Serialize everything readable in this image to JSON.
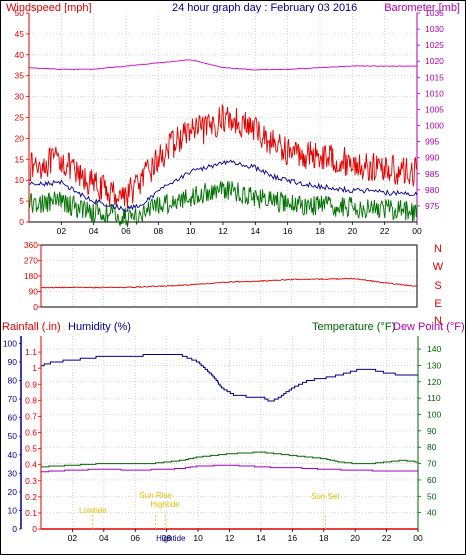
{
  "chart_data": [
    {
      "type": "line",
      "title": "24 hour graph day : February 03 2016",
      "left_axis_label": "Windspeed [mph]",
      "right_axis_label": "Barometer [mb]",
      "x_ticks": [
        "02",
        "04",
        "06",
        "08",
        "10",
        "12",
        "14",
        "16",
        "18",
        "20",
        "22",
        "00"
      ],
      "left_ylim": [
        0,
        50
      ],
      "left_ticks": [
        0,
        5,
        10,
        15,
        20,
        25,
        30,
        35,
        40,
        45,
        50
      ],
      "right_ylim": [
        970,
        1035
      ],
      "right_ticks": [
        975,
        980,
        985,
        990,
        995,
        1000,
        1005,
        1010,
        1015,
        1020,
        1025,
        1030,
        1035
      ],
      "grid": true,
      "series": [
        {
          "color": "#e00000",
          "axis": "left",
          "noise": 3.5,
          "points": [
            [
              0,
              13
            ],
            [
              1,
              14
            ],
            [
              2,
              15
            ],
            [
              3,
              11
            ],
            [
              4,
              9
            ],
            [
              5,
              7
            ],
            [
              6,
              6.5
            ],
            [
              7,
              10
            ],
            [
              8,
              15
            ],
            [
              9,
              19
            ],
            [
              10,
              22
            ],
            [
              11,
              22
            ],
            [
              12,
              25
            ],
            [
              13,
              24
            ],
            [
              14,
              22
            ],
            [
              15,
              19
            ],
            [
              16,
              17
            ],
            [
              17,
              16
            ],
            [
              18,
              16
            ],
            [
              19,
              15
            ],
            [
              20,
              14
            ],
            [
              21,
              13
            ],
            [
              22,
              13
            ],
            [
              23,
              12
            ],
            [
              24,
              12
            ]
          ]
        },
        {
          "color": "#00008b",
          "axis": "left",
          "noise": 0.6,
          "points": [
            [
              0,
              9.5
            ],
            [
              1,
              9
            ],
            [
              2,
              9.5
            ],
            [
              3,
              7
            ],
            [
              4,
              5
            ],
            [
              5,
              4
            ],
            [
              6,
              3
            ],
            [
              7,
              4
            ],
            [
              8,
              7.5
            ],
            [
              9,
              10
            ],
            [
              10,
              12
            ],
            [
              11,
              13
            ],
            [
              12,
              14.5
            ],
            [
              13,
              14
            ],
            [
              14,
              13
            ],
            [
              15,
              11
            ],
            [
              16,
              10
            ],
            [
              17,
              9
            ],
            [
              18,
              8.5
            ],
            [
              19,
              8
            ],
            [
              20,
              7.5
            ],
            [
              21,
              7.5
            ],
            [
              22,
              7
            ],
            [
              23,
              7
            ],
            [
              24,
              6.5
            ]
          ]
        },
        {
          "color": "#007000",
          "axis": "left",
          "noise": 2.5,
          "points": [
            [
              0,
              4.5
            ],
            [
              1,
              4.5
            ],
            [
              2,
              5
            ],
            [
              3,
              3.5
            ],
            [
              4,
              2.5
            ],
            [
              5,
              2
            ],
            [
              6,
              1
            ],
            [
              7,
              2
            ],
            [
              8,
              4
            ],
            [
              9,
              5
            ],
            [
              10,
              6
            ],
            [
              11,
              7
            ],
            [
              12,
              8
            ],
            [
              13,
              7
            ],
            [
              14,
              6
            ],
            [
              15,
              5
            ],
            [
              16,
              4.5
            ],
            [
              17,
              4
            ],
            [
              18,
              4
            ],
            [
              19,
              3.5
            ],
            [
              20,
              3.5
            ],
            [
              21,
              3.5
            ],
            [
              22,
              3
            ],
            [
              23,
              3
            ],
            [
              24,
              2.5
            ]
          ]
        },
        {
          "color": "#d000d0",
          "axis": "right",
          "noise": 0.1,
          "points": [
            [
              0,
              1018
            ],
            [
              2,
              1017.5
            ],
            [
              4,
              1017.5
            ],
            [
              6,
              1018.5
            ],
            [
              8,
              1019.5
            ],
            [
              10,
              1020.5
            ],
            [
              12,
              1018
            ],
            [
              14,
              1017.3
            ],
            [
              16,
              1017.5
            ],
            [
              18,
              1018
            ],
            [
              20,
              1018.5
            ],
            [
              22,
              1018.5
            ],
            [
              24,
              1018.5
            ]
          ]
        }
      ]
    },
    {
      "type": "line",
      "x_ticks": [
        "02",
        "04",
        "06",
        "08",
        "10",
        "12",
        "14",
        "16",
        "18",
        "20",
        "22",
        "00"
      ],
      "ylim": [
        0,
        360
      ],
      "left_ticks": [
        0,
        90,
        180,
        270,
        360
      ],
      "right_labels": [
        "N",
        "W",
        "S",
        "E",
        "N"
      ],
      "grid": true,
      "series": [
        {
          "color": "#e00000",
          "noise": 3,
          "points": [
            [
              0,
              112
            ],
            [
              2,
              114
            ],
            [
              4,
              113
            ],
            [
              6,
              115
            ],
            [
              8,
              122
            ],
            [
              10,
              132
            ],
            [
              12,
              145
            ],
            [
              14,
              150
            ],
            [
              16,
              160
            ],
            [
              18,
              162
            ],
            [
              20,
              165
            ],
            [
              22,
              140
            ],
            [
              24,
              120
            ]
          ]
        }
      ]
    },
    {
      "type": "line",
      "left_axis_label": "Rainfall (.in)",
      "humidity_label": "Humidity (%)",
      "temp_label": "Temperature (°F)",
      "dew_label": "Dew Point (°F)",
      "x_ticks": [
        "02",
        "04",
        "06",
        "08",
        "10",
        "12",
        "14",
        "16",
        "18",
        "20",
        "22",
        "00"
      ],
      "rain_ylim": [
        0,
        1.2
      ],
      "rain_ticks": [
        "0",
        "0.1",
        "0.2",
        "0.3",
        "0.4",
        "0.5",
        "0.6",
        "0.7",
        "0.8",
        "0.9",
        "1",
        "1.1"
      ],
      "humidity_ticks": [
        0,
        10,
        20,
        30,
        40,
        50,
        60,
        70,
        80,
        90,
        100
      ],
      "humidity_ylim": [
        0,
        104
      ],
      "temp_ylim": [
        30,
        148
      ],
      "temp_ticks": [
        40,
        50,
        60,
        70,
        80,
        90,
        100,
        110,
        120,
        130,
        140
      ],
      "grid": true,
      "annotations": [
        {
          "text": "Lowtide",
          "x": 3.3
        },
        {
          "text": "Sun Rise",
          "x": 7.3
        },
        {
          "text": "Hightide",
          "x": 7.9
        },
        {
          "text": "Sun Set",
          "x": 18.1
        }
      ],
      "bottom_labels": [
        {
          "text": "Hightide",
          "x": 7.5
        }
      ],
      "series": [
        {
          "name": "Humidity",
          "color": "#00008b",
          "axis": "humidity",
          "step": true,
          "points": [
            [
              0,
              88
            ],
            [
              0.8,
              90
            ],
            [
              2,
              91
            ],
            [
              3,
              92
            ],
            [
              4,
              93
            ],
            [
              6,
              93
            ],
            [
              7,
              94
            ],
            [
              8.8,
              94
            ],
            [
              10,
              90
            ],
            [
              11,
              82
            ],
            [
              11.5,
              76
            ],
            [
              12.3,
              72
            ],
            [
              13,
              71.5
            ],
            [
              14.2,
              70.5
            ],
            [
              14.6,
              68.5
            ],
            [
              15.2,
              71
            ],
            [
              16,
              76
            ],
            [
              17,
              80
            ],
            [
              18.5,
              82
            ],
            [
              19.5,
              84
            ],
            [
              20.3,
              86
            ],
            [
              21,
              86
            ],
            [
              22,
              84
            ],
            [
              23,
              83
            ],
            [
              24,
              83
            ]
          ]
        },
        {
          "name": "Temperature",
          "color": "#006400",
          "axis": "temp",
          "points": [
            [
              0,
              68
            ],
            [
              2,
              69
            ],
            [
              4,
              70
            ],
            [
              6,
              70
            ],
            [
              7,
              70
            ],
            [
              8,
              71
            ],
            [
              9,
              72
            ],
            [
              10,
              74
            ],
            [
              11,
              75
            ],
            [
              12,
              76
            ],
            [
              14,
              77
            ],
            [
              15,
              76
            ],
            [
              16,
              75
            ],
            [
              17,
              74
            ],
            [
              18,
              73
            ],
            [
              19,
              71
            ],
            [
              20,
              70
            ],
            [
              21,
              70
            ],
            [
              22,
              71
            ],
            [
              23,
              72
            ],
            [
              24,
              71
            ]
          ]
        },
        {
          "name": "Dew Point",
          "color": "#a000c0",
          "axis": "temp",
          "points": [
            [
              0,
              65
            ],
            [
              2,
              66
            ],
            [
              4,
              66.5
            ],
            [
              6,
              66
            ],
            [
              8,
              66.5
            ],
            [
              9,
              67
            ],
            [
              10,
              68.5
            ],
            [
              12,
              69
            ],
            [
              13,
              68.5
            ],
            [
              14,
              68
            ],
            [
              15,
              67.5
            ],
            [
              16,
              67.5
            ],
            [
              17,
              67
            ],
            [
              18,
              66.5
            ],
            [
              20,
              66
            ],
            [
              22,
              65.5
            ],
            [
              24,
              65.5
            ]
          ]
        }
      ]
    }
  ]
}
